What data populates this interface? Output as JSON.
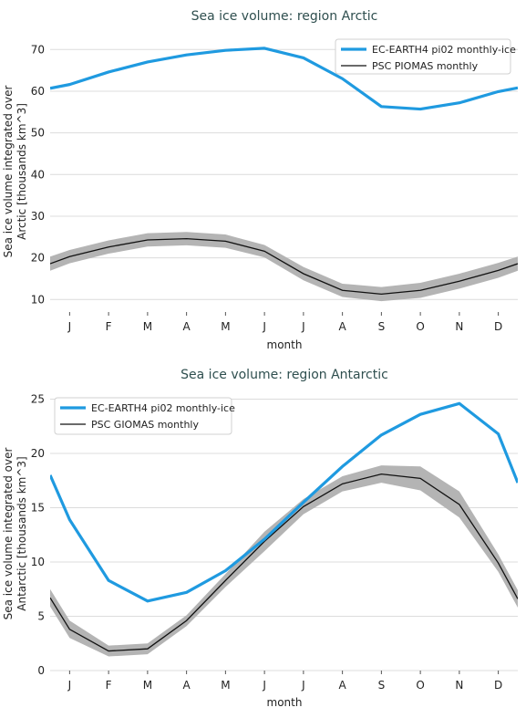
{
  "chart_data": [
    {
      "type": "line",
      "title": "Sea ice volume: region Arctic",
      "xlabel": "month",
      "ylabel_lines": [
        "Sea ice volume integrated over",
        "Arctic [thousands km^3]"
      ],
      "categories": [
        "J",
        "F",
        "M",
        "A",
        "M",
        "J",
        "J",
        "A",
        "S",
        "O",
        "N",
        "D"
      ],
      "ylim": [
        7,
        74
      ],
      "yticks": [
        10,
        20,
        30,
        40,
        50,
        60,
        70
      ],
      "legend_position": "top-right",
      "colors": {
        "model": "#1f9ae0",
        "obs": "#111111",
        "band": "#b4b4b4"
      },
      "series": [
        {
          "name": "EC-EARTH4 pi02 monthly-ice",
          "role": "model",
          "values": [
            61.6,
            64.6,
            67.0,
            68.7,
            69.8,
            70.3,
            68.0,
            63.0,
            56.3,
            55.7,
            57.2,
            59.9
          ],
          "edge_values": [
            60.7,
            60.8
          ]
        },
        {
          "name": "PSC PIOMAS monthly",
          "role": "obs",
          "values": [
            20.3,
            22.6,
            24.3,
            24.6,
            24.0,
            21.6,
            16.2,
            12.2,
            11.3,
            12.2,
            14.4,
            17.0
          ],
          "edge_values": [
            18.6,
            18.6
          ],
          "spread": [
            1.6,
            1.6,
            1.6,
            1.6,
            1.6,
            1.5,
            1.6,
            1.6,
            1.7,
            1.8,
            1.8,
            1.8
          ],
          "edge_spread": [
            1.7,
            1.7
          ]
        }
      ]
    },
    {
      "type": "line",
      "title": "Sea ice volume: region Antarctic",
      "xlabel": "month",
      "ylabel_lines": [
        "Sea ice volume integrated over",
        "Antarctic [thousands km^3]"
      ],
      "categories": [
        "J",
        "F",
        "M",
        "A",
        "M",
        "J",
        "J",
        "A",
        "S",
        "O",
        "N",
        "D"
      ],
      "ylim": [
        0,
        25.8
      ],
      "yticks": [
        0,
        5,
        10,
        15,
        20,
        25
      ],
      "legend_position": "top-left",
      "colors": {
        "model": "#1f9ae0",
        "obs": "#111111",
        "band": "#b4b4b4"
      },
      "series": [
        {
          "name": "EC-EARTH4 pi02 monthly-ice",
          "role": "model",
          "values": [
            13.9,
            8.3,
            6.4,
            7.2,
            9.2,
            12.1,
            15.5,
            18.8,
            21.7,
            23.6,
            24.6,
            21.8
          ],
          "edge_values": [
            18.0,
            17.3
          ]
        },
        {
          "name": "PSC GIOMAS monthly",
          "role": "obs",
          "values": [
            3.8,
            1.8,
            2.0,
            4.6,
            8.3,
            11.9,
            15.1,
            17.2,
            18.1,
            17.7,
            15.3,
            9.9
          ],
          "edge_values": [
            6.7,
            6.6
          ],
          "spread": [
            0.8,
            0.5,
            0.5,
            0.5,
            0.6,
            0.9,
            0.7,
            0.7,
            0.8,
            1.1,
            1.2,
            0.8
          ],
          "edge_spread": [
            0.8,
            0.8
          ]
        }
      ]
    }
  ]
}
